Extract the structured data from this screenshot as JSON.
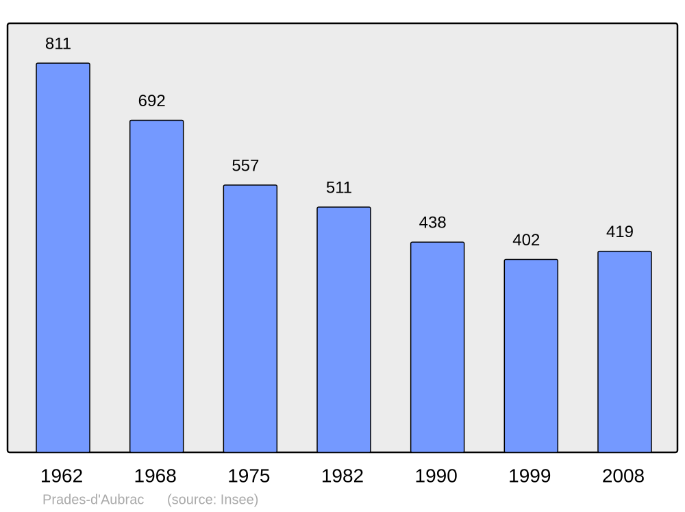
{
  "chart_data": {
    "type": "bar",
    "categories": [
      "1962",
      "1968",
      "1975",
      "1982",
      "1990",
      "1999",
      "2008"
    ],
    "values": [
      811,
      692,
      557,
      511,
      438,
      402,
      419
    ],
    "color": "#7499ff",
    "ylim": [
      0,
      894
    ],
    "caption": "Prades-d'Aubrac",
    "source": "(source: Insee)"
  }
}
